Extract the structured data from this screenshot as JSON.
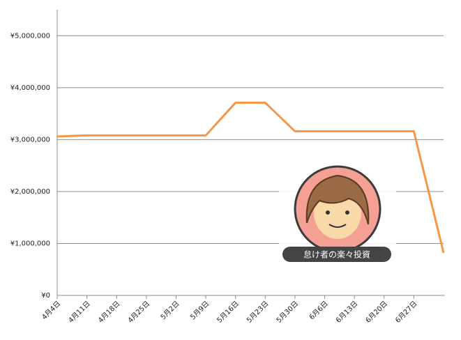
{
  "chart_data": {
    "type": "line",
    "categories": [
      "4月4日",
      "4月11日",
      "4月18日",
      "4月25日",
      "5月2日",
      "5月9日",
      "5月16日",
      "5月23日",
      "5月30日",
      "6月6日",
      "6月13日",
      "6月20日",
      "6月27日",
      null
    ],
    "series": [
      {
        "color": "#f79646",
        "values": [
          3060000,
          3080000,
          3080000,
          3080000,
          3080000,
          3080000,
          3710000,
          3710000,
          3160000,
          3160000,
          3160000,
          3160000,
          3160000,
          820000
        ]
      }
    ],
    "ylim": [
      0,
      5500000
    ],
    "yticks": [
      {
        "value": 0,
        "label": "¥0"
      },
      {
        "value": 1000000,
        "label": "¥1,000,000"
      },
      {
        "value": 2000000,
        "label": "¥2,000,000"
      },
      {
        "value": 3000000,
        "label": "¥3,000,000"
      },
      {
        "value": 4000000,
        "label": "¥4,000,000"
      },
      {
        "value": 5000000,
        "label": "¥5,000,000"
      }
    ],
    "grid": true,
    "annotation": "怠け者の楽々投資"
  }
}
